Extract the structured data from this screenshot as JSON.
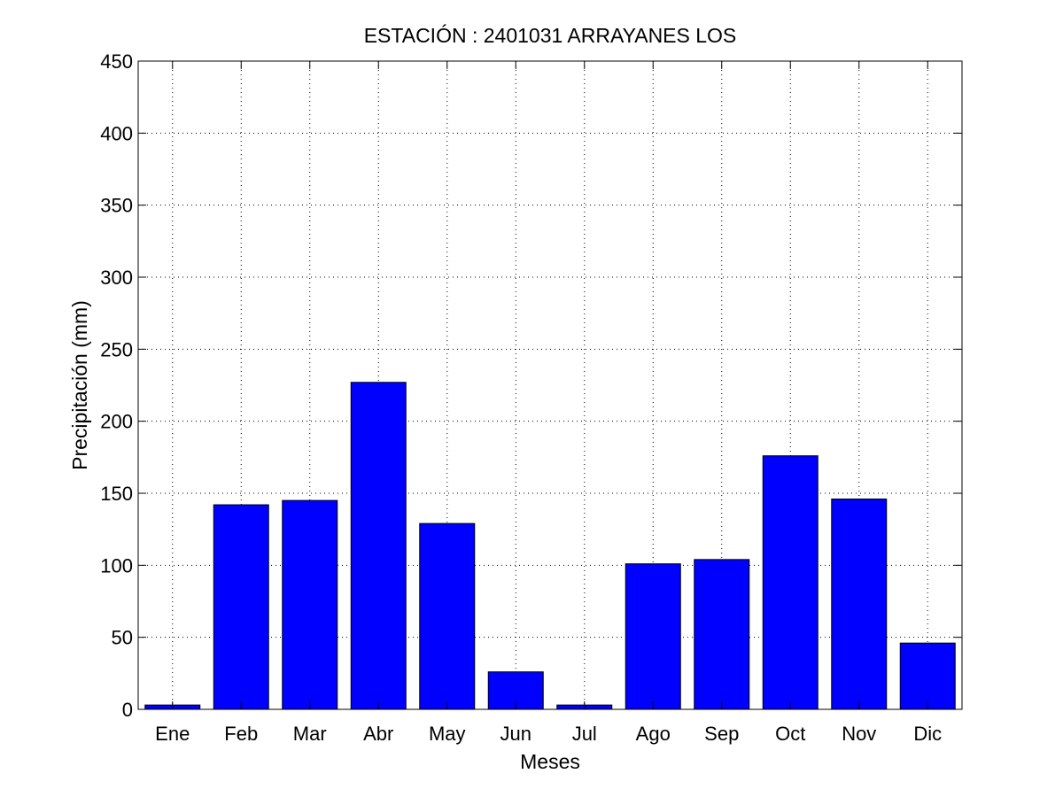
{
  "chart_data": {
    "type": "bar",
    "title": "ESTACIÓN :  2401031  ARRAYANES LOS",
    "xlabel": "Meses",
    "ylabel": "Precipitación (mm)",
    "categories": [
      "Ene",
      "Feb",
      "Mar",
      "Abr",
      "May",
      "Jun",
      "Jul",
      "Ago",
      "Sep",
      "Oct",
      "Nov",
      "Dic"
    ],
    "values": [
      3,
      142,
      145,
      227,
      129,
      26,
      3,
      101,
      104,
      176,
      146,
      46
    ],
    "ylim": [
      0,
      450
    ],
    "yticks": [
      0,
      50,
      100,
      150,
      200,
      250,
      300,
      350,
      400,
      450
    ],
    "grid": true,
    "bar_color": "#0000ff"
  }
}
